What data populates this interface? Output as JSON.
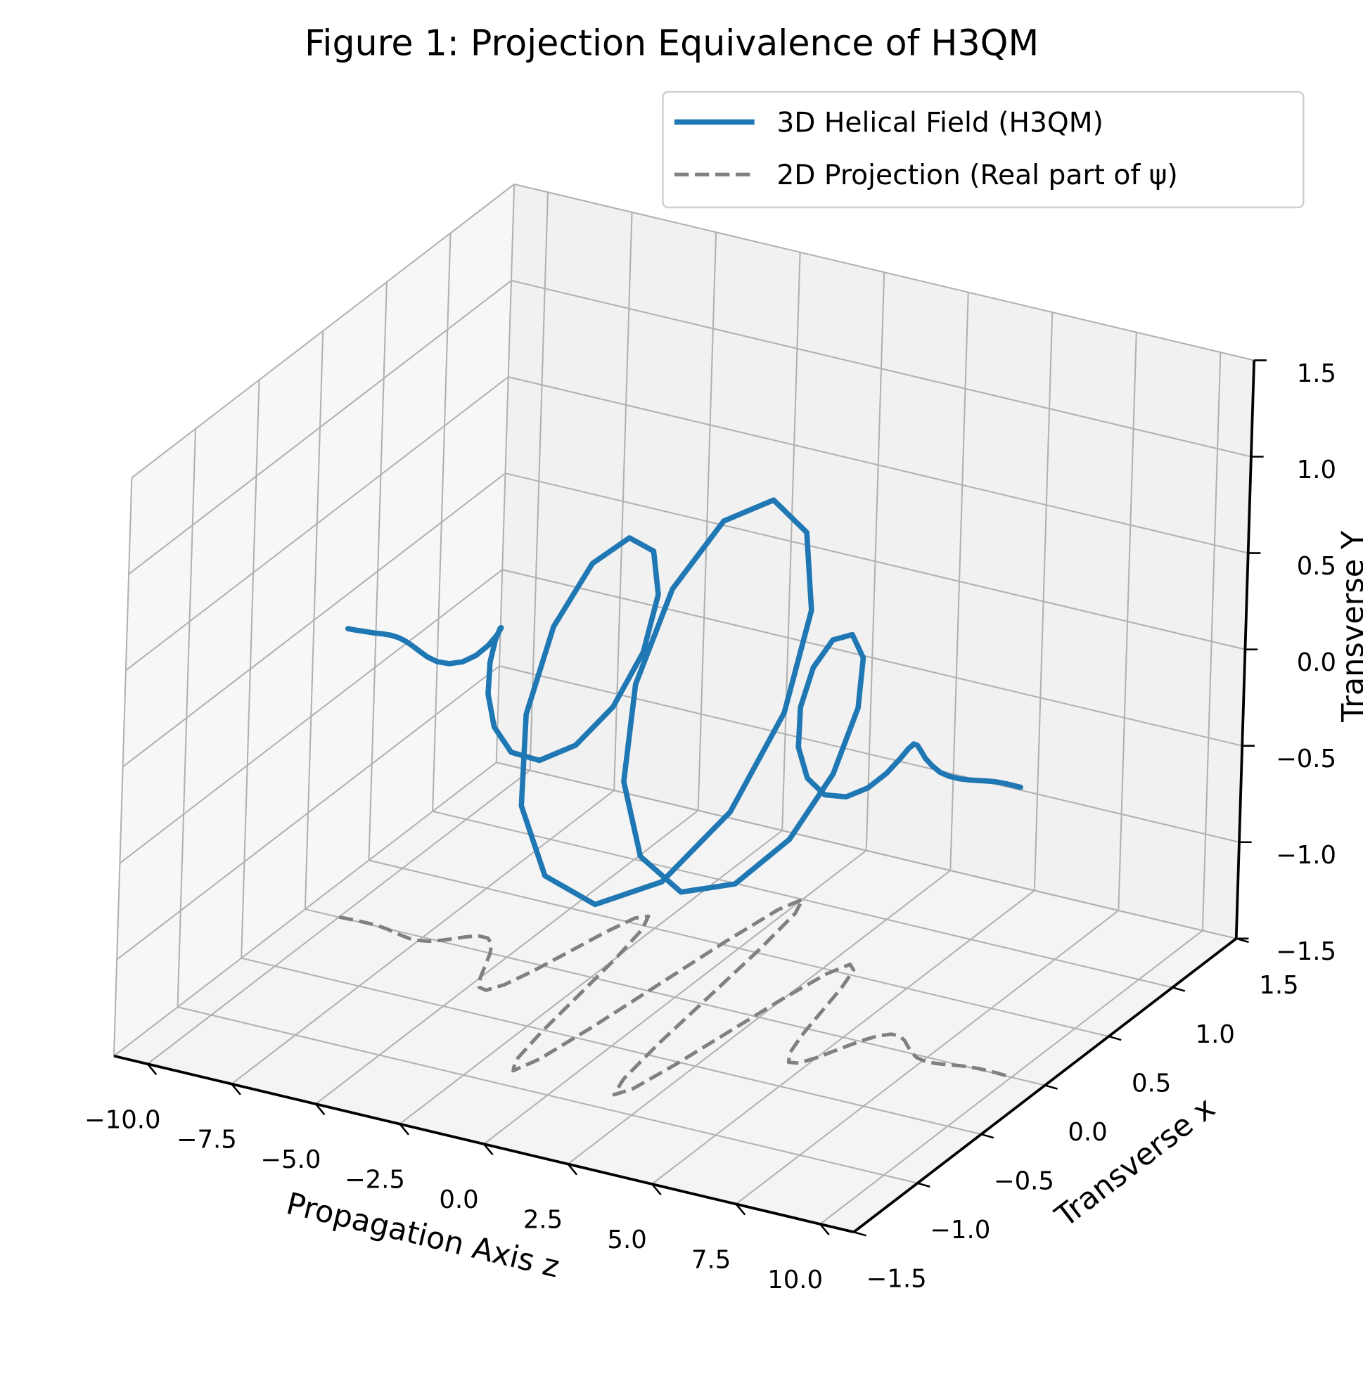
{
  "chart_data": {
    "type": "line3d",
    "title": "Figure 1: Projection Equivalence of H3QM",
    "zlabel": "Propagation Axis z",
    "xlabel": "Transverse x",
    "ylabel": "Transverse Y",
    "zlim": [
      -11,
      11
    ],
    "zticks": [
      {
        "value": -10,
        "label": "−10.0"
      },
      {
        "value": -7.5,
        "label": "−7.5"
      },
      {
        "value": -5,
        "label": "−5.0"
      },
      {
        "value": -2.5,
        "label": "−2.5"
      },
      {
        "value": 0,
        "label": "0.0"
      },
      2.5,
      {
        "value": 5,
        "label": "5.0"
      },
      7.5,
      {
        "value": 10,
        "label": "10.0"
      }
    ],
    "xlim": [
      -1.5,
      1.5
    ],
    "xticks": [
      {
        "value": -1.5,
        "label": "−1.5"
      },
      {
        "value": -1,
        "label": "−1.0"
      },
      {
        "value": -0.5,
        "label": "−0.5"
      },
      {
        "value": 0,
        "label": "0.0"
      },
      0.5,
      {
        "value": 1,
        "label": "1.0"
      },
      1.5
    ],
    "ylim": [
      -1.5,
      1.5
    ],
    "yticks": [
      {
        "value": -1.5,
        "label": "−1.5"
      },
      {
        "value": -1,
        "label": "−1.0"
      },
      {
        "value": -0.5,
        "label": "−0.5"
      },
      {
        "value": 0,
        "label": "0.0"
      },
      0.5,
      {
        "value": 1,
        "label": "1.0"
      },
      1.5
    ],
    "grid": true,
    "legend": "upper right",
    "z": [
      -10,
      -9.75,
      -9.5,
      -9.25,
      -9,
      -8.75,
      -8.5,
      -8.25,
      -8,
      -7.75,
      -7.5,
      -7.25,
      -7,
      -6.75,
      -6.5,
      -6.25,
      -6,
      -5.75,
      -5.5,
      -5.25,
      -5,
      -4.75,
      -4.5,
      -4.25,
      -4,
      -3.75,
      -3.5,
      -3.25,
      -3,
      -2.75,
      -2.5,
      -2.25,
      -2,
      -1.75,
      -1.5,
      -1.25,
      -1,
      -0.75,
      -0.5,
      -0.25,
      0,
      0.25,
      0.5,
      0.75,
      1,
      1.25,
      1.5,
      1.75,
      2,
      2.25,
      2.5,
      2.75,
      3,
      3.25,
      3.5,
      3.75,
      4,
      4.25,
      4.5,
      4.75,
      5,
      5.25,
      5.5,
      5.75,
      6,
      6.25,
      6.5,
      6.75,
      7,
      7.25,
      7.5,
      7.75,
      8,
      8.25,
      8.5,
      8.75,
      9,
      9.25,
      9.5,
      9.75,
      10
    ],
    "series": [
      {
        "name": "3D Helical Field (H3QM)",
        "color": "#1f77b4",
        "dashed": false,
        "x": [
          0.002,
          0.004,
          0.007,
          0.008,
          0.007,
          0.003,
          -0.005,
          -0.016,
          -0.027,
          -0.035,
          -0.033,
          -0.02,
          0.009,
          0.047,
          0.087,
          0.114,
          0.114,
          0.077,
          0.001,
          -0.103,
          -0.209,
          -0.285,
          -0.296,
          -0.221,
          -0.06,
          0.159,
          0.382,
          0.543,
          0.582,
          0.466,
          0.2,
          -0.159,
          -0.523,
          -0.79,
          -0.874,
          -0.735,
          -0.394,
          0.069,
          0.533,
          0.875,
          1,
          0.875,
          0.533,
          0.069,
          -0.394,
          -0.735,
          -0.874,
          -0.79,
          -0.523,
          -0.159,
          0.2,
          0.466,
          0.582,
          0.543,
          0.382,
          0.159,
          -0.06,
          -0.221,
          -0.296,
          -0.285,
          -0.209,
          -0.103,
          0.001,
          0.077,
          0.114,
          0.114,
          0.087,
          0.047,
          0.009,
          -0.02,
          -0.033,
          -0.035,
          -0.027,
          -0.016,
          -0.005,
          0.003,
          0.007,
          0.008,
          0.007,
          0.004,
          0.002
        ],
        "y": [
          -0.004,
          -0.003,
          -0.001,
          0.002,
          0.008,
          0.014,
          0.017,
          0.016,
          0.008,
          -0.006,
          -0.029,
          -0.05,
          -0.065,
          -0.064,
          -0.04,
          0.008,
          0.073,
          0.139,
          0.186,
          0.19,
          0.136,
          0.021,
          -0.134,
          -0.293,
          -0.407,
          -0.429,
          -0.333,
          -0.12,
          0.169,
          0.464,
          0.678,
          0.738,
          0.606,
          0.296,
          -0.125,
          -0.549,
          -0.86,
          -0.967,
          -0.83,
          -0.478,
          0,
          0.478,
          0.83,
          0.967,
          0.86,
          0.549,
          0.125,
          -0.296,
          -0.606,
          -0.738,
          -0.678,
          -0.464,
          -0.169,
          0.12,
          0.333,
          0.429,
          0.407,
          0.293,
          0.134,
          -0.021,
          -0.136,
          -0.19,
          -0.186,
          -0.139,
          -0.073,
          -0.008,
          0.04,
          0.064,
          0.065,
          0.05,
          0.029,
          0.006,
          -0.008,
          -0.016,
          -0.017,
          -0.014,
          -0.008,
          -0.002,
          0.001,
          0.003,
          0.004
        ]
      },
      {
        "name": "2D Projection (Real part of ψ)",
        "color": "#808080",
        "dashed": true,
        "x": [
          0.002,
          0.004,
          0.007,
          0.008,
          0.007,
          0.003,
          -0.005,
          -0.016,
          -0.027,
          -0.035,
          -0.033,
          -0.02,
          0.009,
          0.047,
          0.087,
          0.114,
          0.114,
          0.077,
          0.001,
          -0.103,
          -0.209,
          -0.285,
          -0.296,
          -0.221,
          -0.06,
          0.159,
          0.382,
          0.543,
          0.582,
          0.466,
          0.2,
          -0.159,
          -0.523,
          -0.79,
          -0.874,
          -0.735,
          -0.394,
          0.069,
          0.533,
          0.875,
          1,
          0.875,
          0.533,
          0.069,
          -0.394,
          -0.735,
          -0.874,
          -0.79,
          -0.523,
          -0.159,
          0.2,
          0.466,
          0.582,
          0.543,
          0.382,
          0.159,
          -0.06,
          -0.221,
          -0.296,
          -0.285,
          -0.209,
          -0.103,
          0.001,
          0.077,
          0.114,
          0.114,
          0.087,
          0.047,
          0.009,
          -0.02,
          -0.033,
          -0.035,
          -0.027,
          -0.016,
          -0.005,
          0.003,
          0.007,
          0.008,
          0.007,
          0.004,
          0.002
        ]
      }
    ]
  }
}
